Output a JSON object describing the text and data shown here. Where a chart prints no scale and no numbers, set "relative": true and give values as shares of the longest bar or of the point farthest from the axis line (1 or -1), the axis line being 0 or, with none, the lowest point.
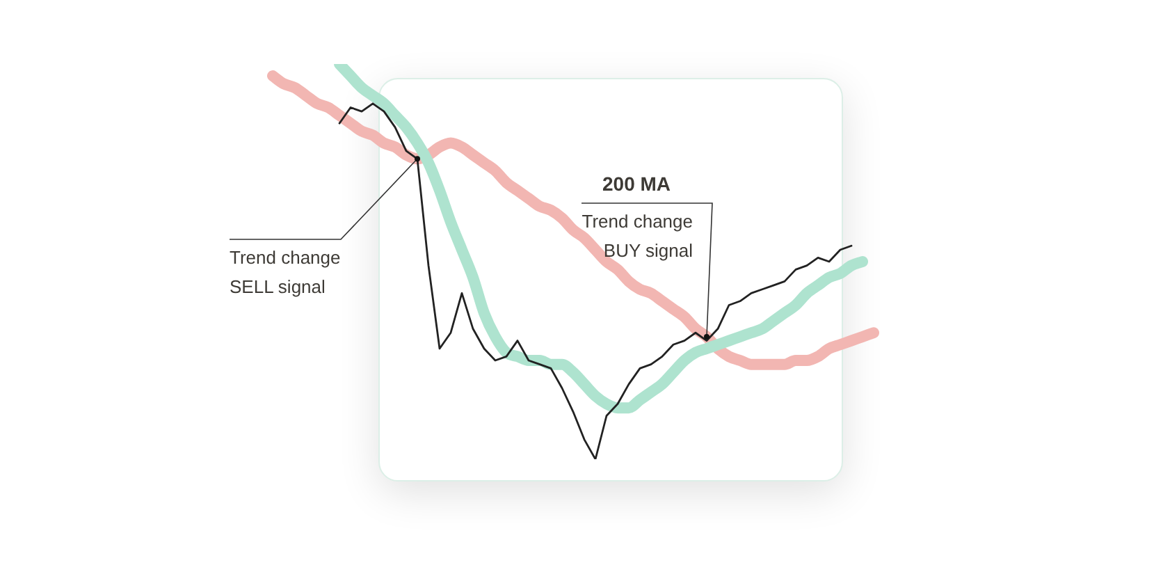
{
  "chart_data": {
    "type": "line",
    "relative": true,
    "legend": false,
    "marker": "none",
    "categories": [
      null,
      null,
      null,
      null,
      null,
      null,
      null,
      null,
      null,
      null,
      null,
      null,
      null,
      null,
      null,
      null,
      null,
      null,
      null,
      null,
      null,
      null,
      null,
      null,
      null,
      null,
      null,
      null,
      null,
      null,
      null,
      null,
      null,
      null,
      null,
      null,
      null,
      null,
      null,
      null,
      null,
      null,
      null,
      null,
      null,
      null,
      null,
      null,
      null,
      null,
      null,
      null,
      null,
      null,
      null
    ],
    "series": [
      {
        "color": "#f2b6b2",
        "values": [
          0.97,
          0.95,
          0.94,
          0.92,
          0.9,
          0.89,
          0.87,
          0.85,
          0.83,
          0.82,
          0.8,
          0.79,
          0.77,
          0.76,
          0.77,
          0.79,
          0.8,
          0.79,
          0.77,
          0.75,
          0.73,
          0.7,
          0.68,
          0.66,
          0.64,
          0.63,
          0.61,
          0.58,
          0.56,
          0.53,
          0.5,
          0.48,
          0.45,
          0.43,
          0.42,
          0.4,
          0.38,
          0.36,
          0.33,
          0.31,
          0.28,
          0.26,
          0.25,
          0.24,
          0.24,
          0.24,
          0.24,
          0.25,
          0.25,
          0.26,
          0.28,
          0.29,
          0.3,
          0.31,
          0.32
        ]
      },
      {
        "color": "#aee3cf",
        "values": [
          null,
          null,
          null,
          null,
          null,
          null,
          1.0,
          0.97,
          0.94,
          0.92,
          0.9,
          0.87,
          0.84,
          0.8,
          0.75,
          0.68,
          0.6,
          0.53,
          0.46,
          0.37,
          0.31,
          0.27,
          0.26,
          0.25,
          0.25,
          0.24,
          0.24,
          0.22,
          0.19,
          0.16,
          0.14,
          0.13,
          0.13,
          0.15,
          0.17,
          0.19,
          0.22,
          0.25,
          0.27,
          0.28,
          0.29,
          0.3,
          0.31,
          0.32,
          0.33,
          0.35,
          0.37,
          0.39,
          0.42,
          0.44,
          0.46,
          0.47,
          0.49,
          0.5,
          null
        ]
      },
      {
        "color": "#222222",
        "values": [
          null,
          null,
          null,
          null,
          null,
          null,
          0.85,
          0.89,
          0.88,
          0.9,
          0.88,
          0.84,
          0.78,
          0.76,
          0.49,
          0.28,
          0.32,
          0.42,
          0.33,
          0.28,
          0.25,
          0.26,
          0.3,
          0.25,
          0.24,
          0.23,
          0.18,
          0.12,
          0.05,
          0.0,
          0.11,
          0.14,
          0.19,
          0.23,
          0.24,
          0.26,
          0.29,
          0.3,
          0.32,
          0.3,
          0.33,
          0.39,
          0.4,
          0.42,
          0.43,
          0.44,
          0.45,
          0.48,
          0.49,
          0.51,
          0.5,
          0.53,
          0.54,
          null,
          null
        ]
      }
    ],
    "annotations": [
      "Trend change\nSELL signal",
      "200 MA",
      "Trend change\nBUY signal"
    ]
  }
}
